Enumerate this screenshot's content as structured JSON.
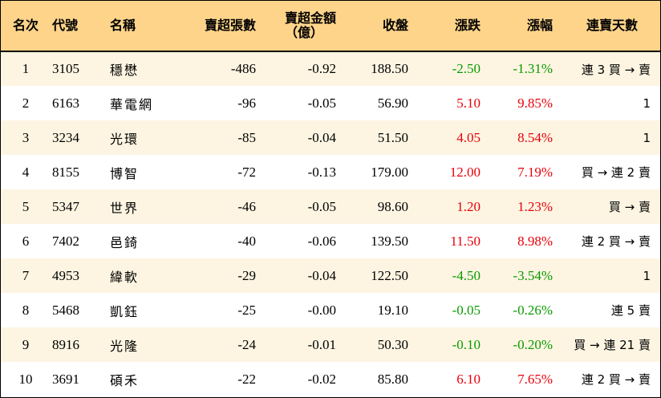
{
  "headers": {
    "rank": "名次",
    "code": "代號",
    "name": "名稱",
    "sell_lots": "賣超張數",
    "sell_amount_line1": "賣超金額",
    "sell_amount_line2": "（億）",
    "close": "收盤",
    "change": "漲跌",
    "change_pct": "漲幅",
    "consecutive_days": "連賣天數"
  },
  "colors": {
    "header_bg": "#fdd48a",
    "row_alt_bg": "#fdf5e2",
    "up": "#e8000b",
    "down": "#0a9a00"
  },
  "rows": [
    {
      "rank": "1",
      "code": "3105",
      "name": "穩懋",
      "lots": "-486",
      "amount": "-0.92",
      "close": "188.50",
      "change": "-2.50",
      "pct": "-1.31%",
      "trend": "down",
      "days": "連 3 買 → 賣"
    },
    {
      "rank": "2",
      "code": "6163",
      "name": "華電網",
      "lots": "-96",
      "amount": "-0.05",
      "close": "56.90",
      "change": "5.10",
      "pct": "9.85%",
      "trend": "up",
      "days": "1"
    },
    {
      "rank": "3",
      "code": "3234",
      "name": "光環",
      "lots": "-85",
      "amount": "-0.04",
      "close": "51.50",
      "change": "4.05",
      "pct": "8.54%",
      "trend": "up",
      "days": "1"
    },
    {
      "rank": "4",
      "code": "8155",
      "name": "博智",
      "lots": "-72",
      "amount": "-0.13",
      "close": "179.00",
      "change": "12.00",
      "pct": "7.19%",
      "trend": "up",
      "days": "買 → 連 2 賣"
    },
    {
      "rank": "5",
      "code": "5347",
      "name": "世界",
      "lots": "-46",
      "amount": "-0.05",
      "close": "98.60",
      "change": "1.20",
      "pct": "1.23%",
      "trend": "up",
      "days": "買 → 賣"
    },
    {
      "rank": "6",
      "code": "7402",
      "name": "邑錡",
      "lots": "-40",
      "amount": "-0.06",
      "close": "139.50",
      "change": "11.50",
      "pct": "8.98%",
      "trend": "up",
      "days": "連 2 買 → 賣"
    },
    {
      "rank": "7",
      "code": "4953",
      "name": "緯軟",
      "lots": "-29",
      "amount": "-0.04",
      "close": "122.50",
      "change": "-4.50",
      "pct": "-3.54%",
      "trend": "down",
      "days": "1"
    },
    {
      "rank": "8",
      "code": "5468",
      "name": "凱鈺",
      "lots": "-25",
      "amount": "-0.00",
      "close": "19.10",
      "change": "-0.05",
      "pct": "-0.26%",
      "trend": "down",
      "days": "連 5 賣"
    },
    {
      "rank": "9",
      "code": "8916",
      "name": "光隆",
      "lots": "-24",
      "amount": "-0.01",
      "close": "50.30",
      "change": "-0.10",
      "pct": "-0.20%",
      "trend": "down",
      "days": "買 → 連 21 賣"
    },
    {
      "rank": "10",
      "code": "3691",
      "name": "碩禾",
      "lots": "-22",
      "amount": "-0.02",
      "close": "85.80",
      "change": "6.10",
      "pct": "7.65%",
      "trend": "up",
      "days": "連 2 買 → 賣"
    }
  ]
}
